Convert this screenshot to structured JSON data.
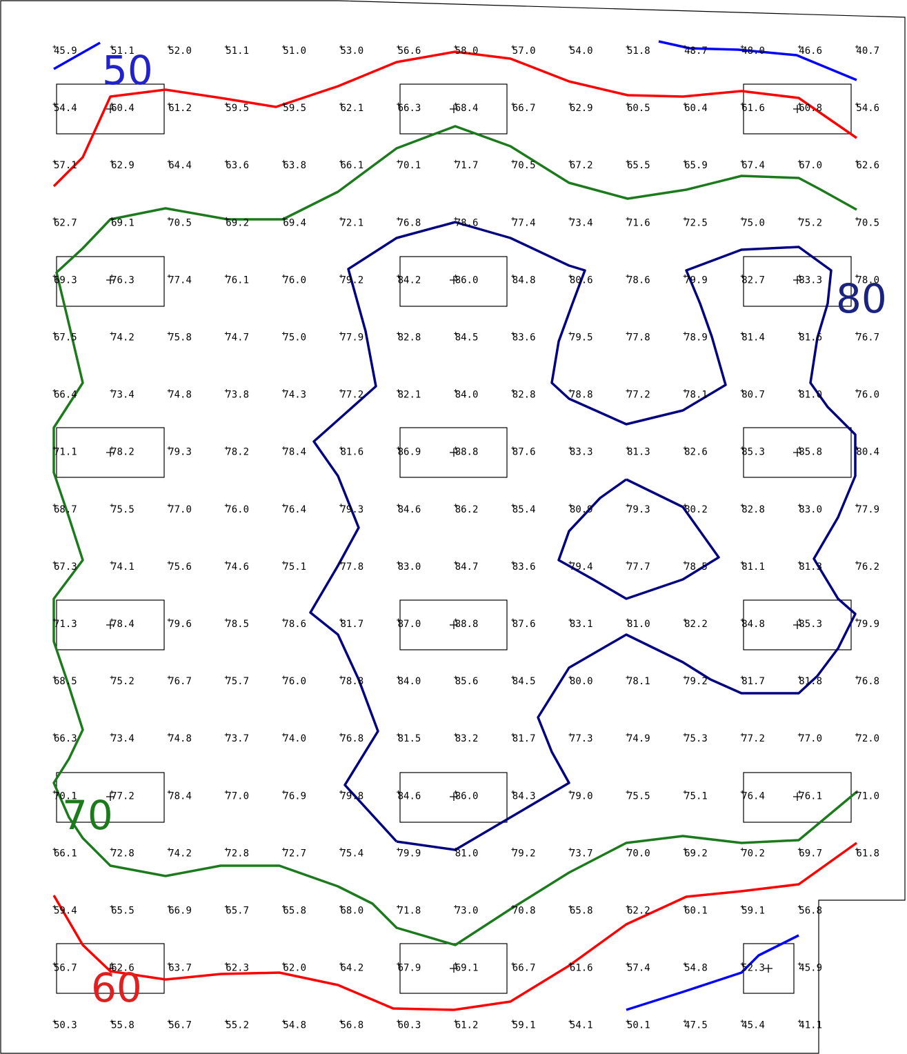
{
  "grid_values": [
    [
      "45.9",
      "51.1",
      "52.0",
      "51.1",
      "51.0",
      "53.0",
      "56.6",
      "58.0",
      "57.0",
      "54.0",
      "51.8",
      "48.7",
      "48.0",
      "46.6",
      "40.7"
    ],
    [
      "54.4",
      "60.4",
      "61.2",
      "59.5",
      "59.5",
      "62.1",
      "66.3",
      "68.4",
      "66.7",
      "62.9",
      "60.5",
      "60.4",
      "61.6",
      "60.8",
      "54.6"
    ],
    [
      "57.1",
      "62.9",
      "64.4",
      "63.6",
      "63.8",
      "66.1",
      "70.1",
      "71.7",
      "70.5",
      "67.2",
      "65.5",
      "65.9",
      "67.4",
      "67.0",
      "62.6"
    ],
    [
      "62.7",
      "69.1",
      "70.5",
      "69.2",
      "69.4",
      "72.1",
      "76.8",
      "78.6",
      "77.4",
      "73.4",
      "71.6",
      "72.5",
      "75.0",
      "75.2",
      "70.5"
    ],
    [
      "69.3",
      "76.3",
      "77.4",
      "76.1",
      "76.0",
      "79.2",
      "84.2",
      "86.0",
      "84.8",
      "80.6",
      "78.6",
      "79.9",
      "82.7",
      "83.3",
      "78.0"
    ],
    [
      "67.5",
      "74.2",
      "75.8",
      "74.7",
      "75.0",
      "77.9",
      "82.8",
      "84.5",
      "83.6",
      "79.5",
      "77.8",
      "78.9",
      "81.4",
      "81.6",
      "76.7"
    ],
    [
      "66.4",
      "73.4",
      "74.8",
      "73.8",
      "74.3",
      "77.2",
      "82.1",
      "84.0",
      "82.8",
      "78.8",
      "77.2",
      "78.1",
      "80.7",
      "81.0",
      "76.0"
    ],
    [
      "71.1",
      "78.2",
      "79.3",
      "78.2",
      "78.4",
      "81.6",
      "86.9",
      "88.8",
      "87.6",
      "83.3",
      "81.3",
      "82.6",
      "85.3",
      "85.8",
      "80.4"
    ],
    [
      "68.7",
      "75.5",
      "77.0",
      "76.0",
      "76.4",
      "79.3",
      "84.6",
      "86.2",
      "85.4",
      "80.9",
      "79.3",
      "80.2",
      "82.8",
      "83.0",
      "77.9"
    ],
    [
      "67.3",
      "74.1",
      "75.6",
      "74.6",
      "75.1",
      "77.8",
      "83.0",
      "84.7",
      "83.6",
      "79.4",
      "77.7",
      "78.5",
      "81.1",
      "81.3",
      "76.2"
    ],
    [
      "71.3",
      "78.4",
      "79.6",
      "78.5",
      "78.6",
      "81.7",
      "87.0",
      "88.8",
      "87.6",
      "83.1",
      "81.0",
      "82.2",
      "84.8",
      "85.3",
      "79.9"
    ],
    [
      "68.5",
      "75.2",
      "76.7",
      "75.7",
      "76.0",
      "78.8",
      "84.0",
      "85.6",
      "84.5",
      "80.0",
      "78.1",
      "79.2",
      "81.7",
      "81.8",
      "76.8"
    ],
    [
      "66.3",
      "73.4",
      "74.8",
      "73.7",
      "74.0",
      "76.8",
      "81.5",
      "83.2",
      "81.7",
      "77.3",
      "74.9",
      "75.3",
      "77.2",
      "77.0",
      "72.0"
    ],
    [
      "70.1",
      "77.2",
      "78.4",
      "77.0",
      "76.9",
      "79.8",
      "84.6",
      "86.0",
      "84.3",
      "79.0",
      "75.5",
      "75.1",
      "76.4",
      "76.1",
      "71.0"
    ],
    [
      "66.1",
      "72.8",
      "74.2",
      "72.8",
      "72.7",
      "75.4",
      "79.9",
      "81.0",
      "79.2",
      "73.7",
      "70.0",
      "69.2",
      "70.2",
      "69.7",
      "61.8"
    ],
    [
      "59.4",
      "65.5",
      "66.9",
      "65.7",
      "65.8",
      "68.0",
      "71.8",
      "73.0",
      "70.8",
      "65.8",
      "62.2",
      "60.1",
      "59.1",
      "56.8",
      ""
    ],
    [
      "56.7",
      "62.6",
      "63.7",
      "62.3",
      "62.0",
      "64.2",
      "67.9",
      "69.1",
      "66.7",
      "61.6",
      "57.4",
      "54.8",
      "52.3",
      "45.9",
      ""
    ],
    [
      "50.3",
      "55.8",
      "56.7",
      "55.2",
      "54.8",
      "56.8",
      "60.3",
      "61.2",
      "59.1",
      "54.1",
      "50.1",
      "47.5",
      "45.4",
      "41.1",
      ""
    ]
  ],
  "contour_labels": [
    {
      "text": "50",
      "color": "#2222cc"
    },
    {
      "text": "80",
      "color": "#1a237e"
    },
    {
      "text": "70",
      "color": "#1b7a1b"
    },
    {
      "text": "60",
      "color": "#e02020"
    }
  ],
  "colors": {
    "contour_50": "#0000ff",
    "contour_60": "#ff0000",
    "contour_70": "#1b7a1b",
    "contour_80": "#000080"
  }
}
